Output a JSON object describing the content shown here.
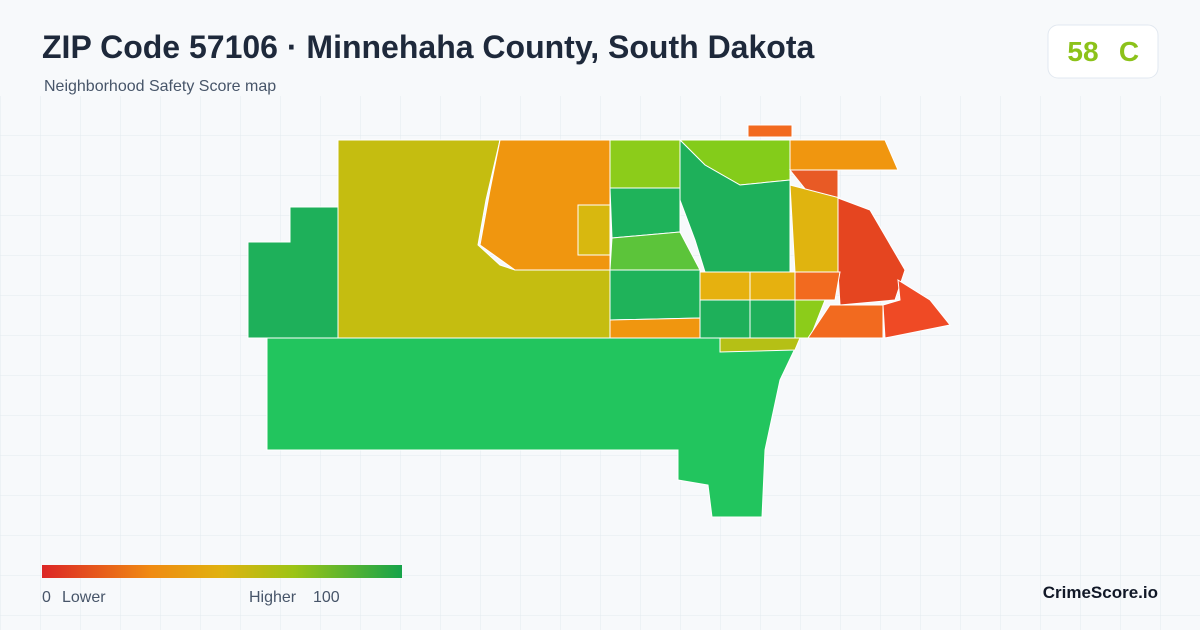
{
  "header": {
    "title": "ZIP Code 57106 · Minnehaha County, South Dakota",
    "subtitle": "Neighborhood Safety Score map"
  },
  "score": {
    "value": 58,
    "grade": "C"
  },
  "legend": {
    "min": 0,
    "min_label": "Lower",
    "max_label": "Higher",
    "max": 100
  },
  "brand": "CrimeScore.io"
}
